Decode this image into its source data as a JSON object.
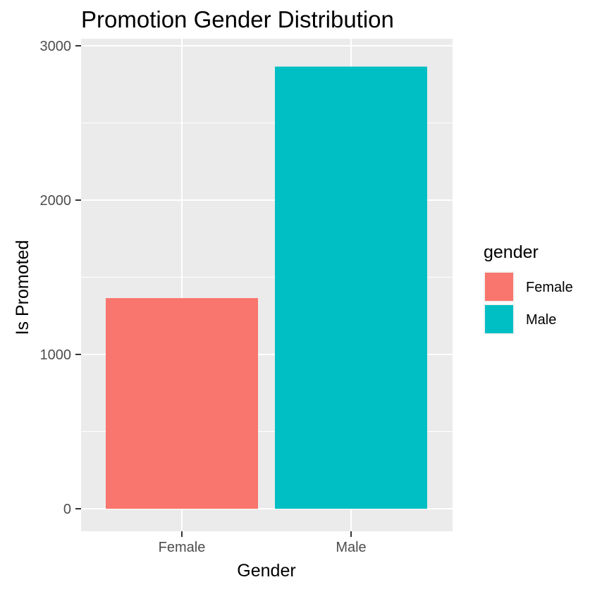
{
  "chart_data": {
    "type": "bar",
    "title": "Promotion Gender Distribution",
    "xlabel": "Gender",
    "ylabel": "Is Promoted",
    "categories": [
      "Female",
      "Male"
    ],
    "values": [
      1365,
      2865
    ],
    "ylim": [
      0,
      3000
    ],
    "yticks": [
      0,
      1000,
      2000,
      3000
    ],
    "grid": true,
    "legend": {
      "title": "gender",
      "position": "right",
      "entries": [
        "Female",
        "Male"
      ]
    },
    "colors": {
      "Female": "#F8766D",
      "Male": "#00BFC4",
      "panel_background": "#EBEBEB",
      "gridline": "#FFFFFF",
      "axis_text": "#4D4D4D"
    }
  }
}
